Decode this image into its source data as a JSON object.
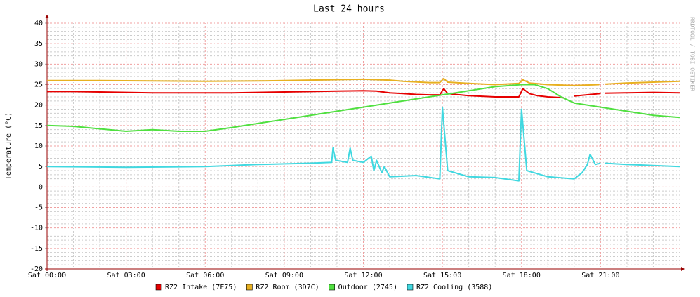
{
  "chart_data": {
    "type": "line",
    "title": "Last 24 hours",
    "y_label": "Temperature (°C)",
    "watermark": "RRDTOOL / TOBI OETIKER",
    "xlim": [
      0,
      24
    ],
    "xticks": [
      {
        "value": 0,
        "label": "Sat 00:00"
      },
      {
        "value": 3,
        "label": "Sat 03:00"
      },
      {
        "value": 6,
        "label": "Sat 06:00"
      },
      {
        "value": 9,
        "label": "Sat 09:00"
      },
      {
        "value": 12,
        "label": "Sat 12:00"
      },
      {
        "value": 15,
        "label": "Sat 15:00"
      },
      {
        "value": 18,
        "label": "Sat 18:00"
      },
      {
        "value": 21,
        "label": "Sat 21:00"
      }
    ],
    "ylim": [
      -20,
      40
    ],
    "yticks": [
      -20,
      -15,
      -10,
      -5,
      0,
      5,
      10,
      15,
      20,
      25,
      30,
      35,
      40
    ],
    "grid": true,
    "legend": "bottom",
    "series": [
      {
        "name": "RZ2 Intake (7F75)",
        "color": "#e60000",
        "x": [
          0,
          1,
          2,
          3,
          4,
          5,
          6,
          7,
          8,
          9,
          10,
          11,
          12,
          12.5,
          13,
          13.5,
          14,
          14.5,
          14.9,
          15.05,
          15.2,
          15.5,
          16,
          17,
          17.9,
          18.05,
          18.3,
          18.6,
          19,
          19.6,
          19.8,
          20,
          21,
          21.05,
          21.15,
          22,
          23,
          24
        ],
        "values": [
          23.3,
          23.3,
          23.2,
          23.1,
          23,
          23,
          23,
          23,
          23.1,
          23.2,
          23.3,
          23.4,
          23.5,
          23.4,
          23,
          22.8,
          22.6,
          22.5,
          22.5,
          24,
          22.8,
          22.6,
          22.3,
          22,
          22,
          24,
          22.8,
          22.3,
          22,
          21.8,
          null,
          22.2,
          22.8,
          null,
          22.9,
          23,
          23.1,
          23
        ]
      },
      {
        "name": "RZ2 Room (3D7C)",
        "color": "#e8b020",
        "x": [
          0,
          2,
          4,
          6,
          8,
          9,
          10,
          11,
          12,
          13,
          13.5,
          14.5,
          14.9,
          15.05,
          15.2,
          16,
          17,
          17.9,
          18.05,
          18.3,
          19,
          20,
          20.95,
          21.05,
          21.15,
          22,
          23,
          24
        ],
        "values": [
          26,
          26,
          25.9,
          25.8,
          25.9,
          26,
          26.1,
          26.2,
          26.3,
          26.1,
          25.8,
          25.5,
          25.5,
          26.5,
          25.6,
          25.3,
          25,
          25.3,
          26.2,
          25.4,
          25,
          24.8,
          25,
          null,
          25.1,
          25.4,
          25.6,
          25.8
        ]
      },
      {
        "name": "Outdoor (2745)",
        "color": "#50e040",
        "x": [
          0,
          1,
          2,
          3,
          4,
          5,
          6,
          7,
          8,
          9,
          10,
          11,
          12,
          13,
          14,
          15,
          15.5,
          16,
          17,
          18,
          18.5,
          19,
          19.5,
          20,
          21,
          22,
          23,
          24
        ],
        "values": [
          15,
          14.8,
          14.2,
          13.6,
          14,
          13.6,
          13.6,
          14.5,
          15.5,
          16.5,
          17.5,
          18.5,
          19.5,
          20.5,
          21.5,
          22.5,
          23,
          23.5,
          24.5,
          25,
          25,
          24,
          22,
          20.5,
          19.5,
          18.5,
          17.5,
          17
        ]
      },
      {
        "name": "RZ2 Cooling (3588)",
        "color": "#40d8e0",
        "x": [
          0,
          3,
          6,
          8,
          10,
          10.8,
          10.85,
          10.95,
          11.4,
          11.5,
          11.6,
          12,
          12.3,
          12.4,
          12.5,
          12.7,
          12.8,
          13,
          14,
          14.9,
          15,
          15.2,
          16,
          17,
          17.9,
          18,
          18.2,
          19,
          20,
          20.3,
          20.5,
          20.6,
          20.8,
          21,
          21.05,
          21.15,
          22,
          24
        ],
        "values": [
          5,
          4.8,
          5,
          5.5,
          5.8,
          6,
          9.5,
          6.5,
          6,
          9.5,
          6.5,
          6,
          7.5,
          4,
          6.5,
          3.5,
          5,
          2.5,
          2.8,
          2,
          19.5,
          4,
          2.5,
          2.3,
          1.5,
          19,
          4,
          2.5,
          2,
          3.5,
          5.5,
          8,
          5.5,
          5.8,
          null,
          5.8,
          5.5,
          5
        ]
      }
    ]
  }
}
